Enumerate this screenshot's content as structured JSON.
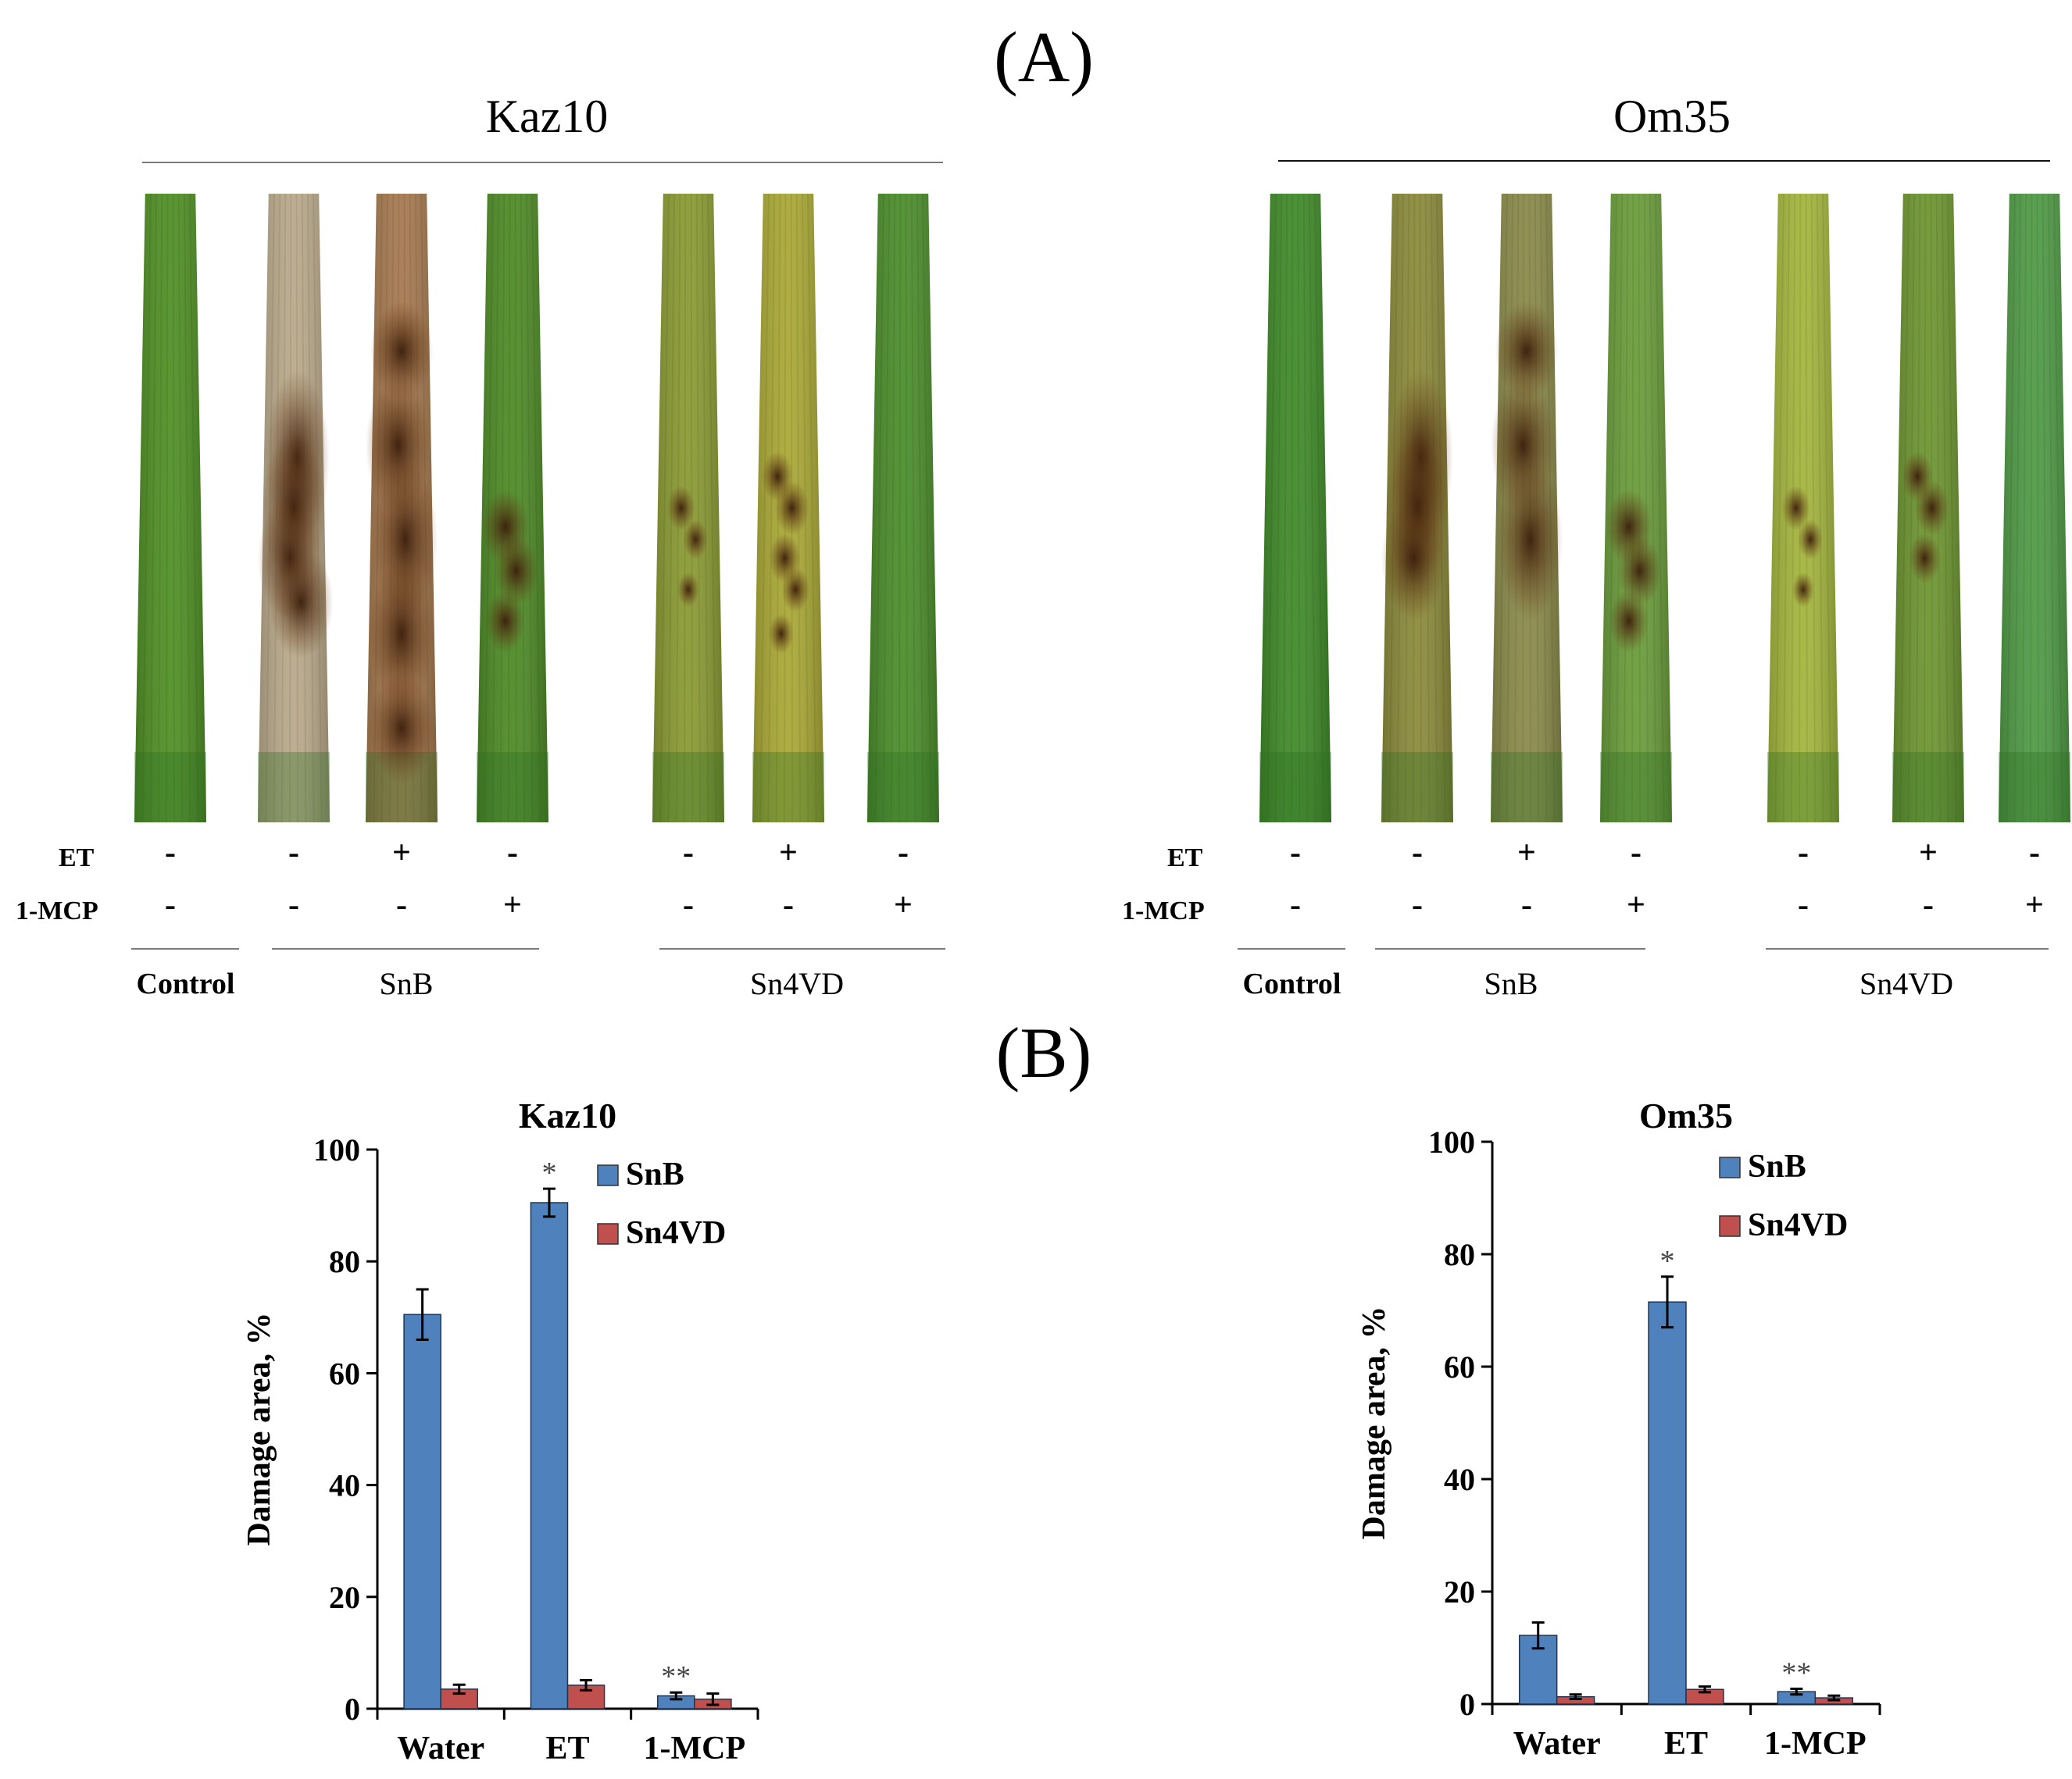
{
  "panel_a": {
    "label": "(A)",
    "row_labels": {
      "et": "ET",
      "mcp": "1-MCP"
    },
    "cultivars": [
      {
        "name": "Kaz10",
        "leaves": [
          {
            "name": "control",
            "et": "-",
            "mcp": "-",
            "color": "#4f8f24"
          },
          {
            "name": "snb-water",
            "et": "-",
            "mcp": "-",
            "color": "#b9a98a"
          },
          {
            "name": "snb-et",
            "et": "+",
            "mcp": "-",
            "color": "#a5794f"
          },
          {
            "name": "snb-mcp",
            "et": "-",
            "mcp": "+",
            "color": "#4d8a25"
          },
          {
            "name": "sn4vd-water",
            "et": "-",
            "mcp": "-",
            "color": "#8a9a32"
          },
          {
            "name": "sn4vd-et",
            "et": "+",
            "mcp": "-",
            "color": "#a9a835"
          },
          {
            "name": "sn4vd-mcp",
            "et": "-",
            "mcp": "+",
            "color": "#4b8d2a"
          }
        ],
        "groups": {
          "control": "Control",
          "snb": "SnB",
          "sn4vd": "Sn4VD"
        }
      },
      {
        "name": "Om35",
        "leaves": [
          {
            "name": "control",
            "et": "-",
            "mcp": "-",
            "color": "#3f8a28"
          },
          {
            "name": "snb-water",
            "et": "-",
            "mcp": "-",
            "color": "#8b8a3a"
          },
          {
            "name": "snb-et",
            "et": "+",
            "mcp": "-",
            "color": "#8a8a4a"
          },
          {
            "name": "snb-mcp",
            "et": "-",
            "mcp": "+",
            "color": "#6a9c3a"
          },
          {
            "name": "sn4vd-water",
            "et": "-",
            "mcp": "-",
            "color": "#a3b53c"
          },
          {
            "name": "sn4vd-et",
            "et": "+",
            "mcp": "-",
            "color": "#6d9530"
          },
          {
            "name": "sn4vd-mcp",
            "et": "-",
            "mcp": "+",
            "color": "#4f9a45"
          }
        ],
        "groups": {
          "control": "Control",
          "snb": "SnB",
          "sn4vd": "Sn4VD"
        }
      }
    ]
  },
  "panel_b": {
    "label": "(B)"
  },
  "chart_data": [
    {
      "type": "bar",
      "title": "Kaz10",
      "xlabel": "",
      "ylabel": "Damage area, %",
      "ylim": [
        0,
        100
      ],
      "yticks": [
        0,
        20,
        40,
        60,
        80,
        100
      ],
      "categories": [
        "Water",
        "ET",
        "1-MCP"
      ],
      "series": [
        {
          "name": "SnB",
          "color": "#4f81bd",
          "values": [
            70.5,
            90.5,
            2.3
          ],
          "errors": [
            4.5,
            2.5,
            0.6
          ],
          "annotations": [
            "",
            "*",
            "**"
          ]
        },
        {
          "name": "Sn4VD",
          "color": "#c0504d",
          "values": [
            3.5,
            4.2,
            1.7
          ],
          "errors": [
            0.8,
            0.9,
            1.0
          ],
          "annotations": [
            "",
            "",
            ""
          ]
        }
      ],
      "legend": "top-right"
    },
    {
      "type": "bar",
      "title": "Om35",
      "xlabel": "",
      "ylabel": "Damage area, %",
      "ylim": [
        0,
        100
      ],
      "yticks": [
        0,
        20,
        40,
        60,
        80,
        100
      ],
      "categories": [
        "Water",
        "ET",
        "1-MCP"
      ],
      "series": [
        {
          "name": "SnB",
          "color": "#4f81bd",
          "values": [
            12.2,
            71.5,
            2.2
          ],
          "errors": [
            2.3,
            4.5,
            0.5
          ],
          "annotations": [
            "",
            "*",
            "**"
          ]
        },
        {
          "name": "Sn4VD",
          "color": "#c0504d",
          "values": [
            1.3,
            2.6,
            1.1
          ],
          "errors": [
            0.4,
            0.5,
            0.4
          ],
          "annotations": [
            "",
            "",
            ""
          ]
        }
      ],
      "legend": "top-right"
    }
  ]
}
